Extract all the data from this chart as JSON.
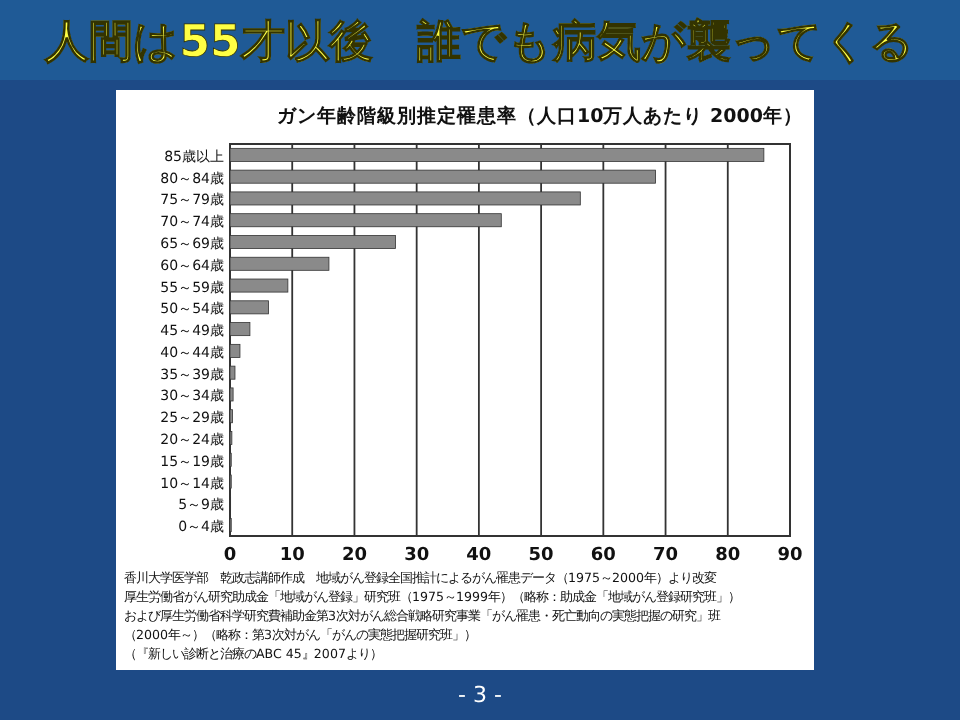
{
  "chart_data": {
    "type": "bar",
    "orientation": "horizontal",
    "title": "人間は55才以後　誰でも病気が襲ってくる",
    "subtitle": "ガン年齢階級別推定罹患率（人口10万人あたり 2000年）",
    "categories": [
      "85歳以上",
      "80～84歳",
      "75～79歳",
      "70～74歳",
      "65～69歳",
      "60～64歳",
      "55～59歳",
      "50～54歳",
      "45～49歳",
      "40～44歳",
      "35～39歳",
      "30～34歳",
      "25～29歳",
      "20～24歳",
      "15～19歳",
      "10～14歳",
      "5～9歳",
      "0～4歳"
    ],
    "values": [
      85.8,
      68.4,
      56.3,
      43.6,
      26.6,
      15.9,
      9.3,
      6.2,
      3.2,
      1.6,
      0.8,
      0.5,
      0.4,
      0.3,
      0.2,
      0.2,
      0.1,
      0.2
    ],
    "color": "#8a8a8a",
    "xlim": [
      0,
      90
    ],
    "xticks": [
      0,
      10,
      20,
      30,
      40,
      50,
      60,
      70,
      80,
      90
    ],
    "grid": "x",
    "annotations": [
      "香川大学医学部　乾政志講師作成　地域がん登録全国推計によるがん罹患データ（1975～2000年）より改変",
      "厚生労働省がん研究助成金「地域がん登録」研究班（1975～1999年）（略称：助成金「地域がん登録研究班」）",
      "および厚生労働省科学研究費補助金第3次対がん総合戦略研究事業「がん罹患・死亡動向の実態把握の研究」班",
      "（2000年～）（略称：第3次対がん「がんの実態把握研究班」）",
      "（『新しい診断と治療のABC 45』2007より）",
      "- 3 -"
    ]
  }
}
